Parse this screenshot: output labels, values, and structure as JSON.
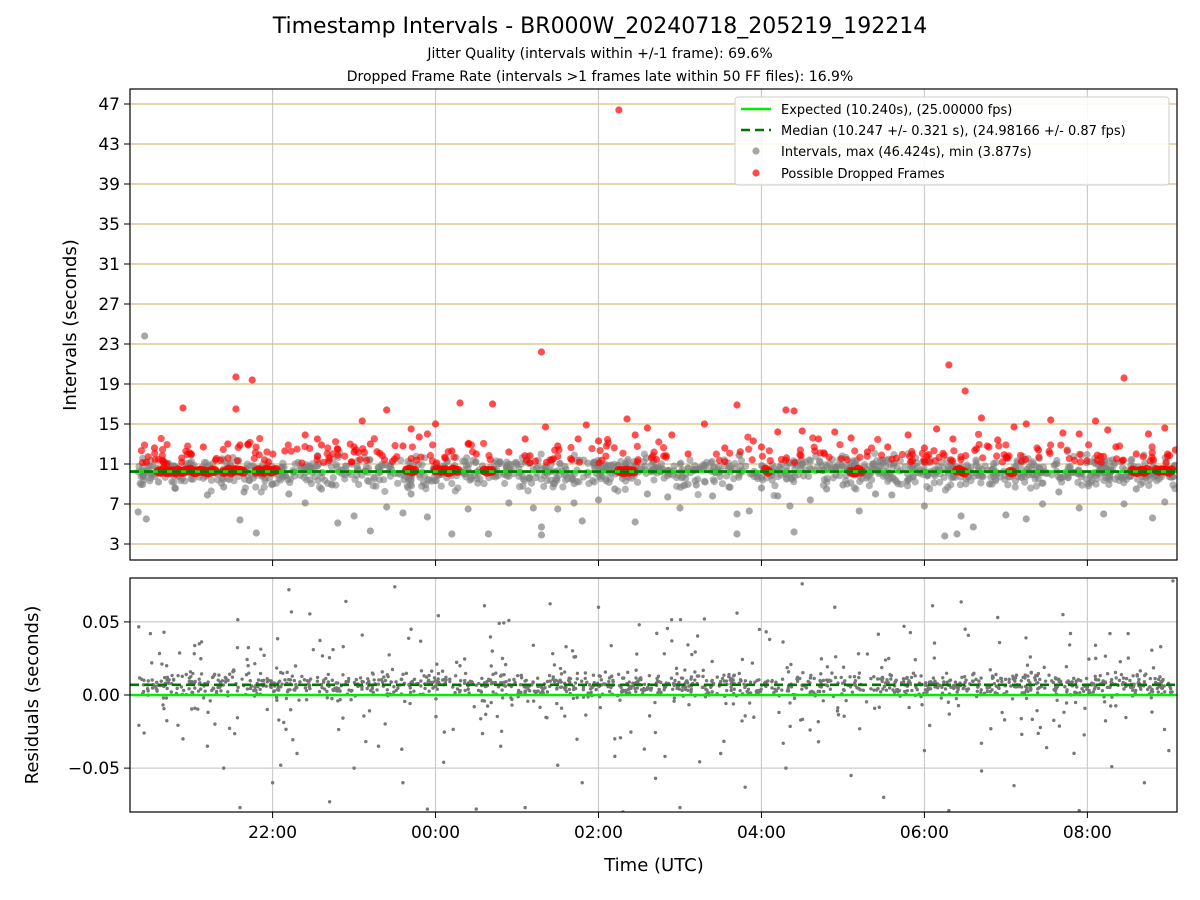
{
  "chart_data": [
    {
      "type": "scatter",
      "title": "Timestamp Intervals - BR000W_20240718_205219_192214",
      "subtitles": [
        "Jitter Quality (intervals within +/-1 frame): 69.6%",
        "Dropped Frame Rate (intervals >1 frames late within 50 FF files): 16.9%"
      ],
      "ylabel": "Intervals (seconds)",
      "xlabel": "",
      "x_unit": "hours since 00:00 UTC (negative = previous day)",
      "xlim": [
        -3.75,
        9.1
      ],
      "ylim": [
        1.4,
        48.5
      ],
      "yticks": [
        3,
        7,
        11,
        15,
        19,
        23,
        27,
        31,
        35,
        39,
        43,
        47
      ],
      "ytick_labels": [
        "3",
        "7",
        "11",
        "15",
        "19",
        "23",
        "27",
        "31",
        "35",
        "39",
        "43",
        "47"
      ],
      "grid": "on",
      "legend_position": "top-right",
      "legend": [
        "Expected (10.240s), (25.00000 fps)",
        "Median (10.247 +/- 0.321 s), (24.98166 +/- 0.87 fps)",
        "Intervals, max (46.424s), min (3.877s)",
        "Possible Dropped Frames"
      ],
      "expected_interval": 10.24,
      "median_interval": 10.247,
      "colors": {
        "expected": "#00ee00",
        "median": "#007700",
        "intervals": "#808080",
        "dropped": "#ff0000",
        "hgrid": "#d8c07a",
        "vgrid": "#cccccc"
      },
      "series": [
        {
          "name": "Intervals, max (46.424s), min (3.877s)",
          "points": [
            [
              -3.65,
              6.2
            ],
            [
              -3.55,
              5.5
            ],
            [
              -3.57,
              23.8
            ],
            [
              -3.4,
              9.2
            ],
            [
              -3.2,
              8.6
            ],
            [
              -3.0,
              9.5
            ],
            [
              -2.8,
              7.9
            ],
            [
              -2.6,
              8.7
            ],
            [
              -2.4,
              5.4
            ],
            [
              -2.35,
              8.2
            ],
            [
              -2.2,
              4.1
            ],
            [
              -2.0,
              9.0
            ],
            [
              -1.8,
              8.0
            ],
            [
              -1.6,
              7.1
            ],
            [
              -1.4,
              8.5
            ],
            [
              -1.2,
              5.1
            ],
            [
              -1.0,
              5.8
            ],
            [
              -0.8,
              4.3
            ],
            [
              -0.6,
              6.7
            ],
            [
              -0.4,
              6.1
            ],
            [
              -0.3,
              8.0
            ],
            [
              -0.1,
              5.7
            ],
            [
              0.2,
              4.0
            ],
            [
              0.4,
              6.5
            ],
            [
              0.65,
              4.0
            ],
            [
              0.9,
              7.1
            ],
            [
              1.2,
              6.6
            ],
            [
              1.3,
              4.7
            ],
            [
              1.3,
              3.9
            ],
            [
              1.5,
              6.5
            ],
            [
              1.7,
              7.1
            ],
            [
              1.8,
              5.3
            ],
            [
              2.0,
              7.4
            ],
            [
              2.2,
              8.5
            ],
            [
              2.45,
              5.2
            ],
            [
              2.6,
              8.0
            ],
            [
              2.85,
              7.7
            ],
            [
              3.0,
              6.6
            ],
            [
              3.2,
              8.9
            ],
            [
              3.4,
              7.8
            ],
            [
              3.6,
              8.7
            ],
            [
              3.7,
              6.0
            ],
            [
              3.7,
              4.0
            ],
            [
              3.85,
              6.3
            ],
            [
              4.0,
              8.6
            ],
            [
              4.2,
              7.8
            ],
            [
              4.35,
              6.8
            ],
            [
              4.4,
              4.2
            ],
            [
              4.6,
              7.4
            ],
            [
              4.8,
              8.5
            ],
            [
              5.0,
              8.9
            ],
            [
              5.2,
              6.3
            ],
            [
              5.4,
              8.0
            ],
            [
              5.6,
              7.9
            ],
            [
              5.8,
              9.4
            ],
            [
              6.0,
              6.8
            ],
            [
              6.25,
              3.8
            ],
            [
              6.4,
              4.0
            ],
            [
              6.45,
              5.8
            ],
            [
              6.6,
              4.7
            ],
            [
              6.8,
              9.0
            ],
            [
              7.0,
              5.9
            ],
            [
              7.25,
              5.5
            ],
            [
              7.45,
              7.0
            ],
            [
              7.65,
              8.2
            ],
            [
              7.9,
              6.6
            ],
            [
              8.2,
              6.0
            ],
            [
              8.45,
              7.0
            ],
            [
              8.6,
              8.5
            ],
            [
              8.8,
              5.6
            ],
            [
              8.95,
              7.2
            ],
            [
              9.05,
              9.7
            ]
          ]
        },
        {
          "name": "Possible Dropped Frames",
          "points": [
            [
              -3.45,
              12.6
            ],
            [
              -3.3,
              11.0
            ],
            [
              -3.1,
              16.6
            ],
            [
              -3.0,
              12.0
            ],
            [
              -2.85,
              12.7
            ],
            [
              -2.7,
              11.4
            ],
            [
              -2.55,
              13.0
            ],
            [
              -2.45,
              16.5
            ],
            [
              -2.45,
              19.7
            ],
            [
              -2.4,
              12.9
            ],
            [
              -2.3,
              12.9
            ],
            [
              -2.25,
              19.4
            ],
            [
              -2.05,
              11.2
            ],
            [
              -1.85,
              12.3
            ],
            [
              -1.6,
              13.9
            ],
            [
              -1.45,
              13.5
            ],
            [
              -1.4,
              12.9
            ],
            [
              -1.2,
              12.5
            ],
            [
              -1.0,
              12.2
            ],
            [
              -0.9,
              15.3
            ],
            [
              -0.8,
              13.0
            ],
            [
              -0.6,
              16.4
            ],
            [
              -0.4,
              12.8
            ],
            [
              -0.3,
              14.5
            ],
            [
              -0.2,
              13.7
            ],
            [
              -0.1,
              14.0
            ],
            [
              0.0,
              15.0
            ],
            [
              0.2,
              12.3
            ],
            [
              0.3,
              17.1
            ],
            [
              0.4,
              13.0
            ],
            [
              0.5,
              12.0
            ],
            [
              0.7,
              17.0
            ],
            [
              0.9,
              12.2
            ],
            [
              1.1,
              13.5
            ],
            [
              1.3,
              22.2
            ],
            [
              1.35,
              14.7
            ],
            [
              1.5,
              12.8
            ],
            [
              1.75,
              13.5
            ],
            [
              1.85,
              14.9
            ],
            [
              2.0,
              13.3
            ],
            [
              2.25,
              46.4
            ],
            [
              2.35,
              15.5
            ],
            [
              2.45,
              13.9
            ],
            [
              2.6,
              14.6
            ],
            [
              2.8,
              11.8
            ],
            [
              2.9,
              13.9
            ],
            [
              3.1,
              12.0
            ],
            [
              3.3,
              15.0
            ],
            [
              3.55,
              12.6
            ],
            [
              3.7,
              16.9
            ],
            [
              3.9,
              13.3
            ],
            [
              4.0,
              12.7
            ],
            [
              4.2,
              14.2
            ],
            [
              4.3,
              16.4
            ],
            [
              4.4,
              16.3
            ],
            [
              4.5,
              14.3
            ],
            [
              4.7,
              13.5
            ],
            [
              4.9,
              14.2
            ],
            [
              5.1,
              13.6
            ],
            [
              5.3,
              12.2
            ],
            [
              5.55,
              12.7
            ],
            [
              5.8,
              13.9
            ],
            [
              6.0,
              12.6
            ],
            [
              6.15,
              14.5
            ],
            [
              6.3,
              20.9
            ],
            [
              6.35,
              13.5
            ],
            [
              6.5,
              18.3
            ],
            [
              6.7,
              15.6
            ],
            [
              6.9,
              13.4
            ],
            [
              7.1,
              14.7
            ],
            [
              7.25,
              15.0
            ],
            [
              7.4,
              12.4
            ],
            [
              7.55,
              15.4
            ],
            [
              7.7,
              14.1
            ],
            [
              7.9,
              14.0
            ],
            [
              8.1,
              15.3
            ],
            [
              8.25,
              14.4
            ],
            [
              8.35,
              12.7
            ],
            [
              8.45,
              19.6
            ],
            [
              8.6,
              12.0
            ],
            [
              8.75,
              14.0
            ],
            [
              8.95,
              14.6
            ],
            [
              9.08,
              12.4
            ]
          ]
        }
      ]
    },
    {
      "type": "scatter",
      "ylabel": "Residuals (seconds)",
      "xlabel": "Time (UTC)",
      "xlim": [
        -3.75,
        9.1
      ],
      "ylim": [
        -0.08,
        0.08
      ],
      "yticks": [
        -0.05,
        0.0,
        0.05
      ],
      "ytick_labels": [
        "−0.05",
        "0.00",
        "0.05"
      ],
      "xticks": [
        -2,
        0,
        2,
        4,
        6,
        8
      ],
      "xtick_labels": [
        "22:00",
        "00:00",
        "02:00",
        "04:00",
        "06:00",
        "08:00"
      ],
      "grid": "on",
      "expected_residual": 0.0,
      "median_residual": 0.007,
      "series": [
        {
          "name": "",
          "points": [
            [
              -3.5,
              0.042
            ],
            [
              -3.3,
              0.02
            ],
            [
              -3.1,
              -0.03
            ],
            [
              -2.9,
              0.035
            ],
            [
              -2.8,
              -0.035
            ],
            [
              -2.6,
              -0.05
            ],
            [
              -2.4,
              -0.077
            ],
            [
              -2.3,
              0.02
            ],
            [
              -2.0,
              -0.06
            ],
            [
              -1.9,
              -0.048
            ],
            [
              -1.8,
              0.072
            ],
            [
              -1.7,
              -0.04
            ],
            [
              -1.5,
              0.031
            ],
            [
              -1.3,
              -0.073
            ],
            [
              -1.1,
              0.064
            ],
            [
              -1.0,
              -0.05
            ],
            [
              -0.9,
              0.041
            ],
            [
              -0.7,
              -0.035
            ],
            [
              -0.5,
              0.074
            ],
            [
              -0.4,
              -0.06
            ],
            [
              -0.3,
              0.045
            ],
            [
              -0.1,
              -0.078
            ],
            [
              0.1,
              -0.046
            ],
            [
              0.3,
              0.02
            ],
            [
              0.5,
              -0.078
            ],
            [
              0.6,
              0.061
            ],
            [
              0.8,
              -0.035
            ],
            [
              0.9,
              0.051
            ],
            [
              1.1,
              -0.077
            ],
            [
              1.2,
              0.034
            ],
            [
              1.35,
              0.081
            ],
            [
              1.5,
              -0.048
            ],
            [
              1.7,
              0.026
            ],
            [
              1.8,
              -0.06
            ],
            [
              2.0,
              0.06
            ],
            [
              2.2,
              -0.03
            ],
            [
              2.3,
              -0.08
            ],
            [
              2.5,
              0.048
            ],
            [
              2.7,
              -0.057
            ],
            [
              2.9,
              0.037
            ],
            [
              3.0,
              -0.077
            ],
            [
              3.3,
              0.052
            ],
            [
              3.5,
              -0.04
            ],
            [
              3.7,
              0.056
            ],
            [
              3.8,
              -0.063
            ],
            [
              4.1,
              0.038
            ],
            [
              4.3,
              -0.05
            ],
            [
              4.5,
              0.076
            ],
            [
              4.7,
              -0.032
            ],
            [
              4.9,
              0.06
            ],
            [
              5.1,
              -0.055
            ],
            [
              5.3,
              0.028
            ],
            [
              5.5,
              -0.07
            ],
            [
              5.75,
              0.047
            ],
            [
              6.0,
              -0.038
            ],
            [
              6.1,
              0.061
            ],
            [
              6.3,
              -0.079
            ],
            [
              6.5,
              0.045
            ],
            [
              6.7,
              -0.033
            ],
            [
              6.9,
              0.053
            ],
            [
              7.1,
              -0.062
            ],
            [
              7.3,
              0.026
            ],
            [
              7.5,
              -0.036
            ],
            [
              7.7,
              0.055
            ],
            [
              7.9,
              -0.079
            ],
            [
              8.1,
              0.034
            ],
            [
              8.3,
              -0.049
            ],
            [
              8.5,
              0.042
            ],
            [
              8.7,
              -0.06
            ],
            [
              8.9,
              0.033
            ],
            [
              9.0,
              -0.038
            ],
            [
              9.05,
              0.078
            ]
          ]
        }
      ]
    }
  ]
}
